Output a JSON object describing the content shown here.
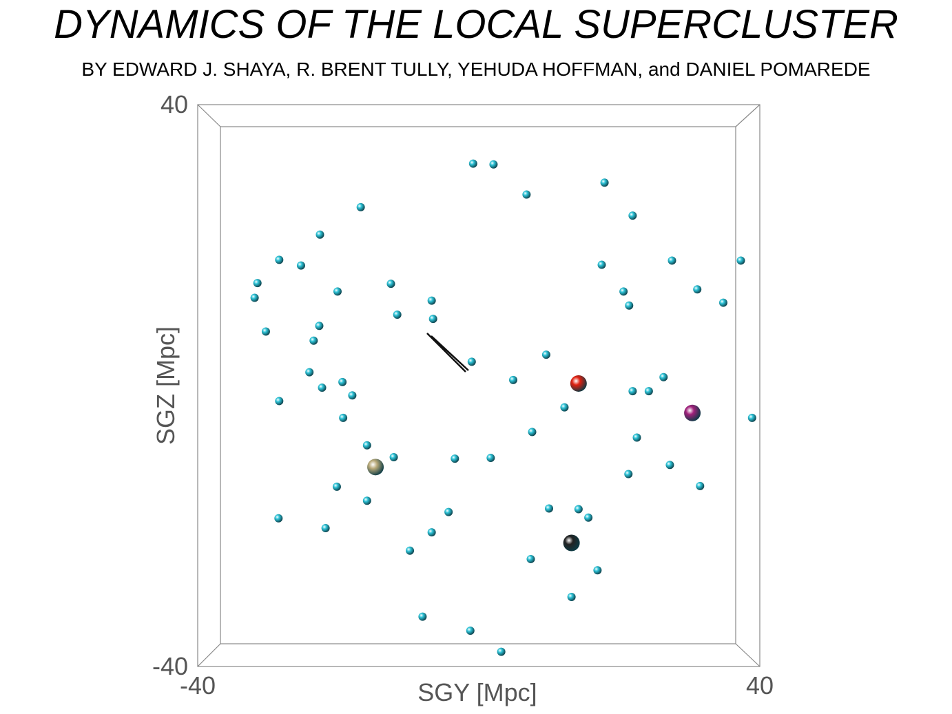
{
  "chart_data": {
    "type": "scatter",
    "title": "DYNAMICS OF THE LOCAL SUPERCLUSTER",
    "subtitle": "BY EDWARD J. SHAYA, R. BRENT TULLY, YEHUDA HOFFMAN, and DANIEL POMAREDE",
    "x_label": "SGY [Mpc]",
    "y_label": "SGZ [Mpc]",
    "xlim": [
      -40,
      40
    ],
    "ylim": [
      -40,
      40
    ],
    "xticks": [
      -40,
      40
    ],
    "yticks": [
      -40,
      40
    ],
    "series": [
      {
        "color": "#2ec4d8",
        "x": [
          -0.8,
          2.1,
          6.8,
          17.9,
          21.9,
          -16.8,
          -22.6,
          -28.4,
          -31.5,
          -31.9,
          -20.1,
          -25.3,
          -12.5,
          -11.6,
          -6.7,
          -6.5,
          -22.7,
          -30.3,
          -23.5,
          -24.1,
          -28.4,
          -22.3,
          -19.4,
          -18.0,
          -19.3,
          -15.9,
          -12.1,
          -20.2,
          -15.9,
          -21.8,
          -28.5,
          -4.3,
          -6.7,
          -9.8,
          -8.0,
          -1.2,
          3.2,
          7.4,
          13.2,
          16.9,
          15.6,
          10.0,
          12.2,
          9.6,
          4.9,
          -1.0,
          17.5,
          20.6,
          21.4,
          31.1,
          26.3,
          21.9,
          24.2,
          21.3,
          22.5,
          27.2,
          31.5,
          38.9,
          34.8,
          37.3,
          27.5,
          1.7,
          -3.4,
          7.6,
          14.2
        ],
        "y": [
          31.6,
          31.5,
          27.2,
          28.9,
          24.2,
          25.4,
          21.5,
          17.9,
          14.6,
          12.5,
          13.4,
          17.1,
          14.5,
          10.1,
          12.1,
          9.5,
          8.5,
          7.7,
          6.4,
          1.9,
          -2.2,
          -0.3,
          0.5,
          -1.4,
          -4.6,
          -8.5,
          -10.2,
          -14.4,
          -16.4,
          -20.3,
          -18.9,
          -18.0,
          -20.9,
          -23.5,
          -32.9,
          -34.9,
          -37.9,
          -24.7,
          -30.1,
          -26.3,
          -18.8,
          -17.5,
          -3.1,
          4.4,
          0.8,
          3.4,
          17.2,
          13.4,
          11.4,
          13.7,
          1.2,
          -0.8,
          -0.8,
          -12.6,
          -7.4,
          -11.3,
          -14.3,
          -4.6,
          11.8,
          17.8,
          17.8,
          -10.3,
          -10.4,
          -6.6,
          -17.6
        ]
      },
      {
        "color": "#e02010",
        "x": [
          14.2
        ],
        "y": [
          0.3
        ]
      },
      {
        "color": "#a0207a",
        "x": [
          30.4
        ],
        "y": [
          -3.9
        ]
      },
      {
        "color": "#b8a878",
        "x": [
          -14.7
        ],
        "y": [
          -11.6
        ]
      },
      {
        "color": "#222222",
        "x": [
          13.2
        ],
        "y": [
          -22.4
        ]
      }
    ]
  }
}
